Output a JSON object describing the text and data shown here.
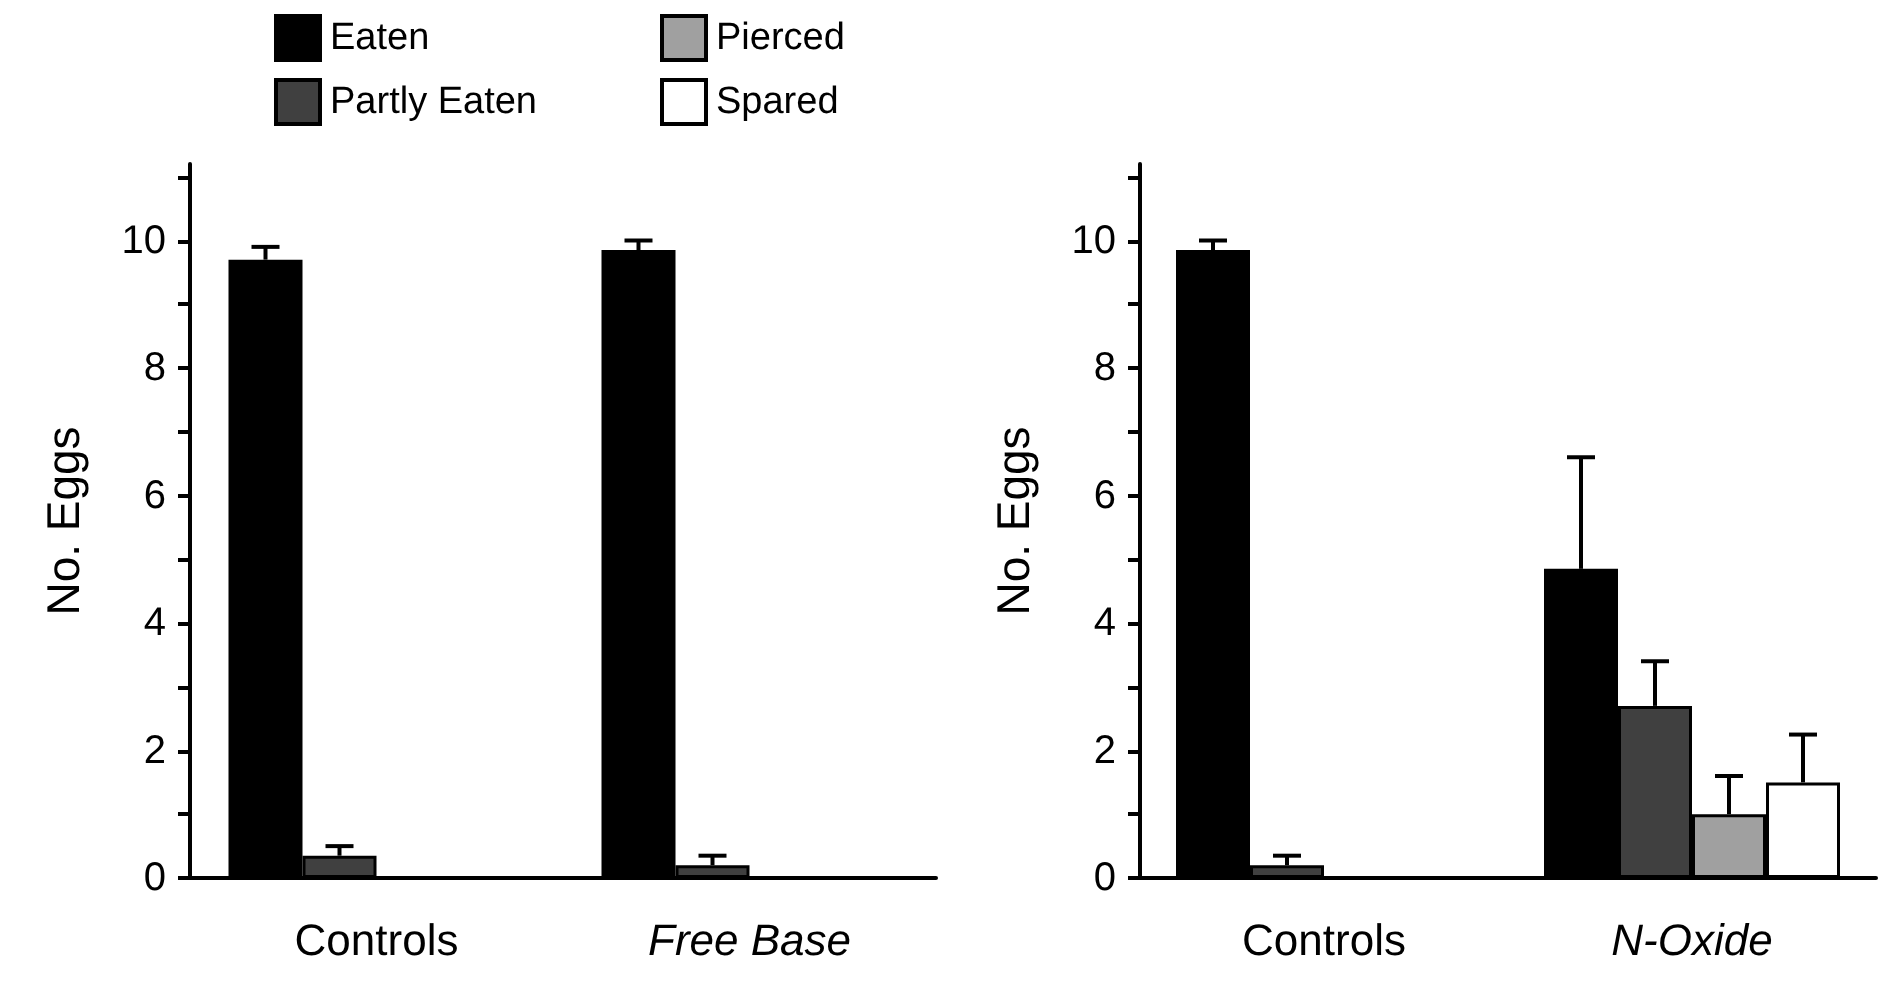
{
  "chart_data": [
    {
      "type": "bar",
      "categories": [
        "Controls",
        "Free Base"
      ],
      "ylabel": "No. Eggs",
      "ylim": [
        0,
        11.2
      ],
      "yticks": [
        0,
        {
          "value": 1,
          "label": null
        },
        2,
        {
          "value": 3,
          "label": null
        },
        4,
        {
          "value": 5,
          "label": null
        },
        6,
        {
          "value": 7,
          "label": null
        },
        8,
        {
          "value": 9,
          "label": null
        },
        10,
        {
          "value": 11,
          "label": null
        }
      ],
      "series": [
        {
          "name": "Eaten",
          "color": "#000000",
          "values": [
            9.7,
            9.85
          ],
          "errors": [
            [
              9.7,
              9.9
            ],
            [
              9.85,
              10.0
            ]
          ]
        },
        {
          "name": "Partly Eaten",
          "color": "#404040",
          "values": [
            0.35,
            0.2
          ],
          "errors": [
            [
              0.35,
              0.5
            ],
            [
              0.2,
              0.35
            ]
          ]
        },
        {
          "name": "Pierced",
          "color": "#a0a0a0",
          "values": [
            null,
            null
          ],
          "errors": [
            null,
            null
          ]
        },
        {
          "name": "Spared",
          "color": "#ffffff",
          "values": [
            null,
            null
          ],
          "errors": [
            null,
            null
          ]
        }
      ],
      "legend": "top",
      "grid": false
    },
    {
      "type": "bar",
      "categories": [
        "Controls",
        "N-Oxide"
      ],
      "ylabel": "No. Eggs",
      "ylim": [
        0,
        11.2
      ],
      "yticks": [
        0,
        {
          "value": 1,
          "label": null
        },
        2,
        {
          "value": 3,
          "label": null
        },
        4,
        {
          "value": 5,
          "label": null
        },
        6,
        {
          "value": 7,
          "label": null
        },
        8,
        {
          "value": 9,
          "label": null
        },
        10,
        {
          "value": 11,
          "label": null
        }
      ],
      "series": [
        {
          "color": "#000000",
          "values": [
            9.85,
            4.85
          ],
          "errors": [
            [
              9.85,
              10.0
            ],
            [
              4.85,
              6.6
            ]
          ]
        },
        {
          "color": "#404040",
          "values": [
            0.2,
            2.7
          ],
          "errors": [
            [
              0.2,
              0.35
            ],
            [
              2.7,
              3.4
            ]
          ]
        },
        {
          "color": "#a0a0a0",
          "values": [
            null,
            1.0
          ],
          "errors": [
            null,
            [
              1.0,
              1.6
            ]
          ]
        },
        {
          "color": "#ffffff",
          "values": [
            null,
            1.5
          ],
          "errors": [
            null,
            [
              1.5,
              2.25
            ]
          ]
        }
      ],
      "legend": false,
      "grid": false
    }
  ]
}
